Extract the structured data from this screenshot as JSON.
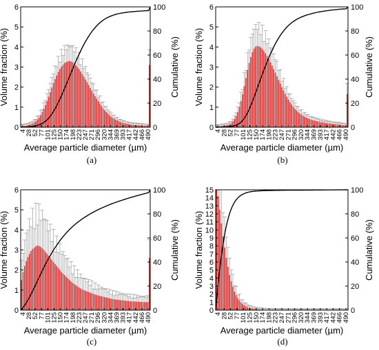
{
  "chart_data": [
    {
      "panel": "(a)",
      "type": "bar",
      "xlabel": "Average particle diameter (µm)",
      "ylabel": "Volume fraction (%)",
      "y2label": "Cumulative (%)",
      "ylim": [
        0,
        6
      ],
      "yticks": [
        0,
        1,
        2,
        3,
        4,
        5,
        6
      ],
      "y2lim": [
        0,
        100
      ],
      "y2ticks": [
        0,
        20,
        40,
        60,
        80,
        100
      ],
      "x_tick_labels": [
        "4",
        "28",
        "52",
        "77",
        "101",
        "125",
        "150",
        "174",
        "198",
        "223",
        "247",
        "271",
        "296",
        "320",
        "344",
        "369",
        "393",
        "417",
        "442",
        "466",
        "490"
      ],
      "bins_count": 81,
      "values": [
        0.05,
        0.06,
        0.07,
        0.08,
        0.1,
        0.12,
        0.15,
        0.19,
        0.24,
        0.3,
        0.38,
        0.48,
        0.6,
        0.75,
        0.92,
        1.1,
        1.3,
        1.52,
        1.75,
        1.98,
        2.2,
        2.4,
        2.58,
        2.75,
        2.9,
        3.02,
        3.12,
        3.2,
        3.25,
        3.28,
        3.3,
        3.28,
        3.24,
        3.18,
        3.1,
        3.0,
        2.9,
        2.78,
        2.65,
        2.52,
        2.38,
        2.24,
        2.1,
        1.95,
        1.82,
        1.68,
        1.55,
        1.42,
        1.3,
        1.18,
        1.06,
        0.95,
        0.85,
        0.76,
        0.68,
        0.6,
        0.53,
        0.47,
        0.42,
        0.37,
        0.33,
        0.29,
        0.26,
        0.23,
        0.21,
        0.19,
        0.17,
        0.15,
        0.14,
        0.13,
        0.12,
        0.11,
        0.1,
        0.1,
        0.09,
        0.09,
        0.08,
        0.08,
        0.08,
        0.08,
        3.1
      ],
      "error_scale": 0.18
    },
    {
      "panel": "(b)",
      "type": "bar",
      "xlabel": "Average particle diameter (µm)",
      "ylabel": "Volume fraction (%)",
      "y2label": "Cumulative (%)",
      "ylim": [
        0,
        6
      ],
      "yticks": [
        0,
        1,
        2,
        3,
        4,
        5,
        6
      ],
      "y2lim": [
        0,
        100
      ],
      "y2ticks": [
        0,
        20,
        40,
        60,
        80,
        100
      ],
      "x_tick_labels": [
        "4",
        "28",
        "52",
        "77",
        "101",
        "125",
        "150",
        "174",
        "198",
        "223",
        "247",
        "271",
        "296",
        "320",
        "344",
        "369",
        "393",
        "417",
        "442",
        "466",
        "490"
      ],
      "bins_count": 81,
      "values": [
        0.03,
        0.04,
        0.05,
        0.06,
        0.07,
        0.08,
        0.1,
        0.12,
        0.15,
        0.2,
        0.28,
        0.4,
        0.55,
        0.75,
        1.0,
        1.3,
        1.65,
        2.05,
        2.45,
        2.85,
        3.2,
        3.5,
        3.75,
        3.92,
        4.02,
        4.05,
        4.03,
        3.98,
        3.9,
        3.8,
        3.68,
        3.55,
        3.4,
        3.24,
        3.07,
        2.9,
        2.72,
        2.54,
        2.36,
        2.18,
        2.0,
        1.83,
        1.67,
        1.52,
        1.38,
        1.25,
        1.13,
        1.02,
        0.92,
        0.83,
        0.75,
        0.68,
        0.62,
        0.57,
        0.52,
        0.48,
        0.44,
        0.41,
        0.38,
        0.35,
        0.33,
        0.31,
        0.29,
        0.27,
        0.25,
        0.24,
        0.22,
        0.21,
        0.2,
        0.19,
        0.18,
        0.17,
        0.16,
        0.15,
        0.14,
        0.13,
        0.12,
        0.11,
        0.1,
        0.09,
        1.65
      ],
      "error_scale": 0.2
    },
    {
      "panel": "(c)",
      "type": "bar",
      "xlabel": "Average particle diameter (µm)",
      "ylabel": "Volume fraction (%)",
      "y2label": "Cumulative (%)",
      "ylim": [
        0,
        6
      ],
      "yticks": [
        0,
        1,
        2,
        3,
        4,
        5,
        6
      ],
      "y2lim": [
        0,
        100
      ],
      "y2ticks": [
        0,
        20,
        40,
        60,
        80,
        100
      ],
      "x_tick_labels": [
        "4",
        "28",
        "52",
        "77",
        "101",
        "125",
        "150",
        "174",
        "198",
        "223",
        "247",
        "271",
        "296",
        "320",
        "344",
        "369",
        "393",
        "417",
        "442",
        "466",
        "490"
      ],
      "bins_count": 81,
      "values": [
        1.5,
        1.9,
        2.2,
        2.45,
        2.65,
        2.8,
        2.95,
        3.05,
        3.12,
        3.18,
        3.22,
        3.2,
        3.15,
        3.08,
        3.0,
        2.9,
        2.8,
        2.7,
        2.6,
        2.5,
        2.4,
        2.3,
        2.2,
        2.1,
        2.0,
        1.9,
        1.82,
        1.74,
        1.66,
        1.58,
        1.5,
        1.43,
        1.36,
        1.3,
        1.24,
        1.18,
        1.13,
        1.08,
        1.04,
        1.0,
        0.96,
        0.93,
        0.9,
        0.87,
        0.84,
        0.81,
        0.78,
        0.75,
        0.73,
        0.71,
        0.69,
        0.67,
        0.65,
        0.63,
        0.61,
        0.59,
        0.57,
        0.55,
        0.54,
        0.53,
        0.52,
        0.51,
        0.5,
        0.49,
        0.48,
        0.47,
        0.46,
        0.45,
        0.44,
        0.44,
        0.43,
        0.43,
        0.42,
        0.42,
        0.41,
        0.41,
        0.4,
        0.4,
        0.4,
        0.4,
        2.6
      ],
      "error_scale": 0.45
    },
    {
      "panel": "(d)",
      "type": "bar",
      "xlabel": "Average particle diameter (µm)",
      "ylabel": "Volume fraction (%)",
      "y2label": "Cumulative (%)",
      "ylim": [
        0,
        15
      ],
      "yticks": [
        0,
        1,
        2,
        3,
        4,
        5,
        6,
        7,
        8,
        9,
        10,
        11,
        12,
        13,
        14,
        15
      ],
      "y2lim": [
        0,
        100
      ],
      "y2ticks": [
        0,
        20,
        40,
        60,
        80,
        100
      ],
      "x_tick_labels": [
        "4",
        "28",
        "52",
        "77",
        "101",
        "125",
        "150",
        "174",
        "198",
        "223",
        "247",
        "271",
        "296",
        "320",
        "344",
        "369",
        "393",
        "417",
        "442",
        "466",
        "490"
      ],
      "bins_count": 81,
      "values": [
        15.0,
        14.2,
        12.5,
        10.8,
        9.2,
        7.8,
        6.5,
        5.4,
        4.4,
        3.6,
        2.9,
        2.3,
        1.85,
        1.5,
        1.2,
        0.95,
        0.75,
        0.6,
        0.48,
        0.38,
        0.3,
        0.24,
        0.19,
        0.15,
        0.12,
        0.1,
        0.08,
        0.07,
        0.06,
        0.05,
        0.05,
        0.04,
        0.04,
        0.03,
        0.03,
        0.03,
        0.02,
        0.02,
        0.02,
        0.02,
        0.02,
        0.02,
        0.02,
        0.01,
        0.01,
        0.01,
        0.01,
        0.01,
        0.01,
        0.01,
        0.01,
        0.01,
        0.01,
        0.01,
        0.01,
        0.01,
        0.01,
        0.01,
        0.01,
        0.01,
        0.01,
        0.01,
        0.01,
        0.01,
        0.01,
        0.01,
        0.01,
        0.01,
        0.01,
        0.01,
        0.01,
        0.01,
        0.01,
        0.01,
        0.01,
        0.01,
        0.01,
        0.01,
        0.01,
        0.01,
        0.01
      ],
      "error_scale": 0.35
    }
  ],
  "colors": {
    "bar": "#d42a2a",
    "error_bar": "#9a9a9a",
    "cumulative_line": "#000000",
    "axis": "#000000"
  }
}
